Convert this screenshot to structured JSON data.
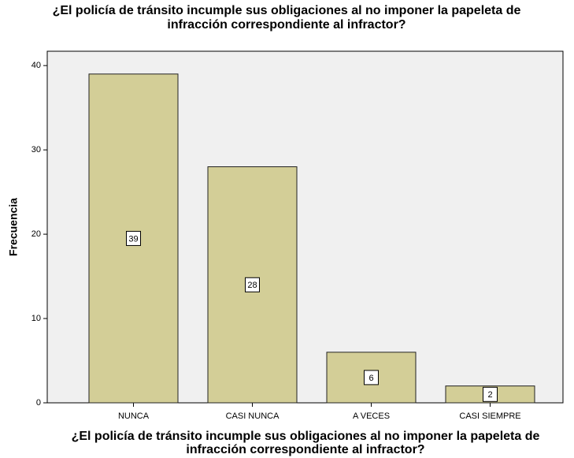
{
  "chart_data": {
    "type": "bar",
    "title": [
      "¿El policía de tránsito incumple sus obligaciones al no imponer la papeleta de",
      "infracción correspondiente al infractor?"
    ],
    "x_label": [
      "¿El policía de tránsito incumple sus obligaciones al no imponer la papeleta de",
      "infracción correspondiente al infractor?"
    ],
    "y_label": "Frecuencia",
    "categories": [
      "NUNCA",
      "CASI NUNCA",
      "A VECES",
      "CASI SIEMPRE"
    ],
    "values": [
      39,
      28,
      6,
      2
    ],
    "color": "#d3ce97",
    "ylim": [
      0,
      41.7
    ],
    "yticks": [
      0,
      10,
      20,
      30,
      40
    ]
  }
}
